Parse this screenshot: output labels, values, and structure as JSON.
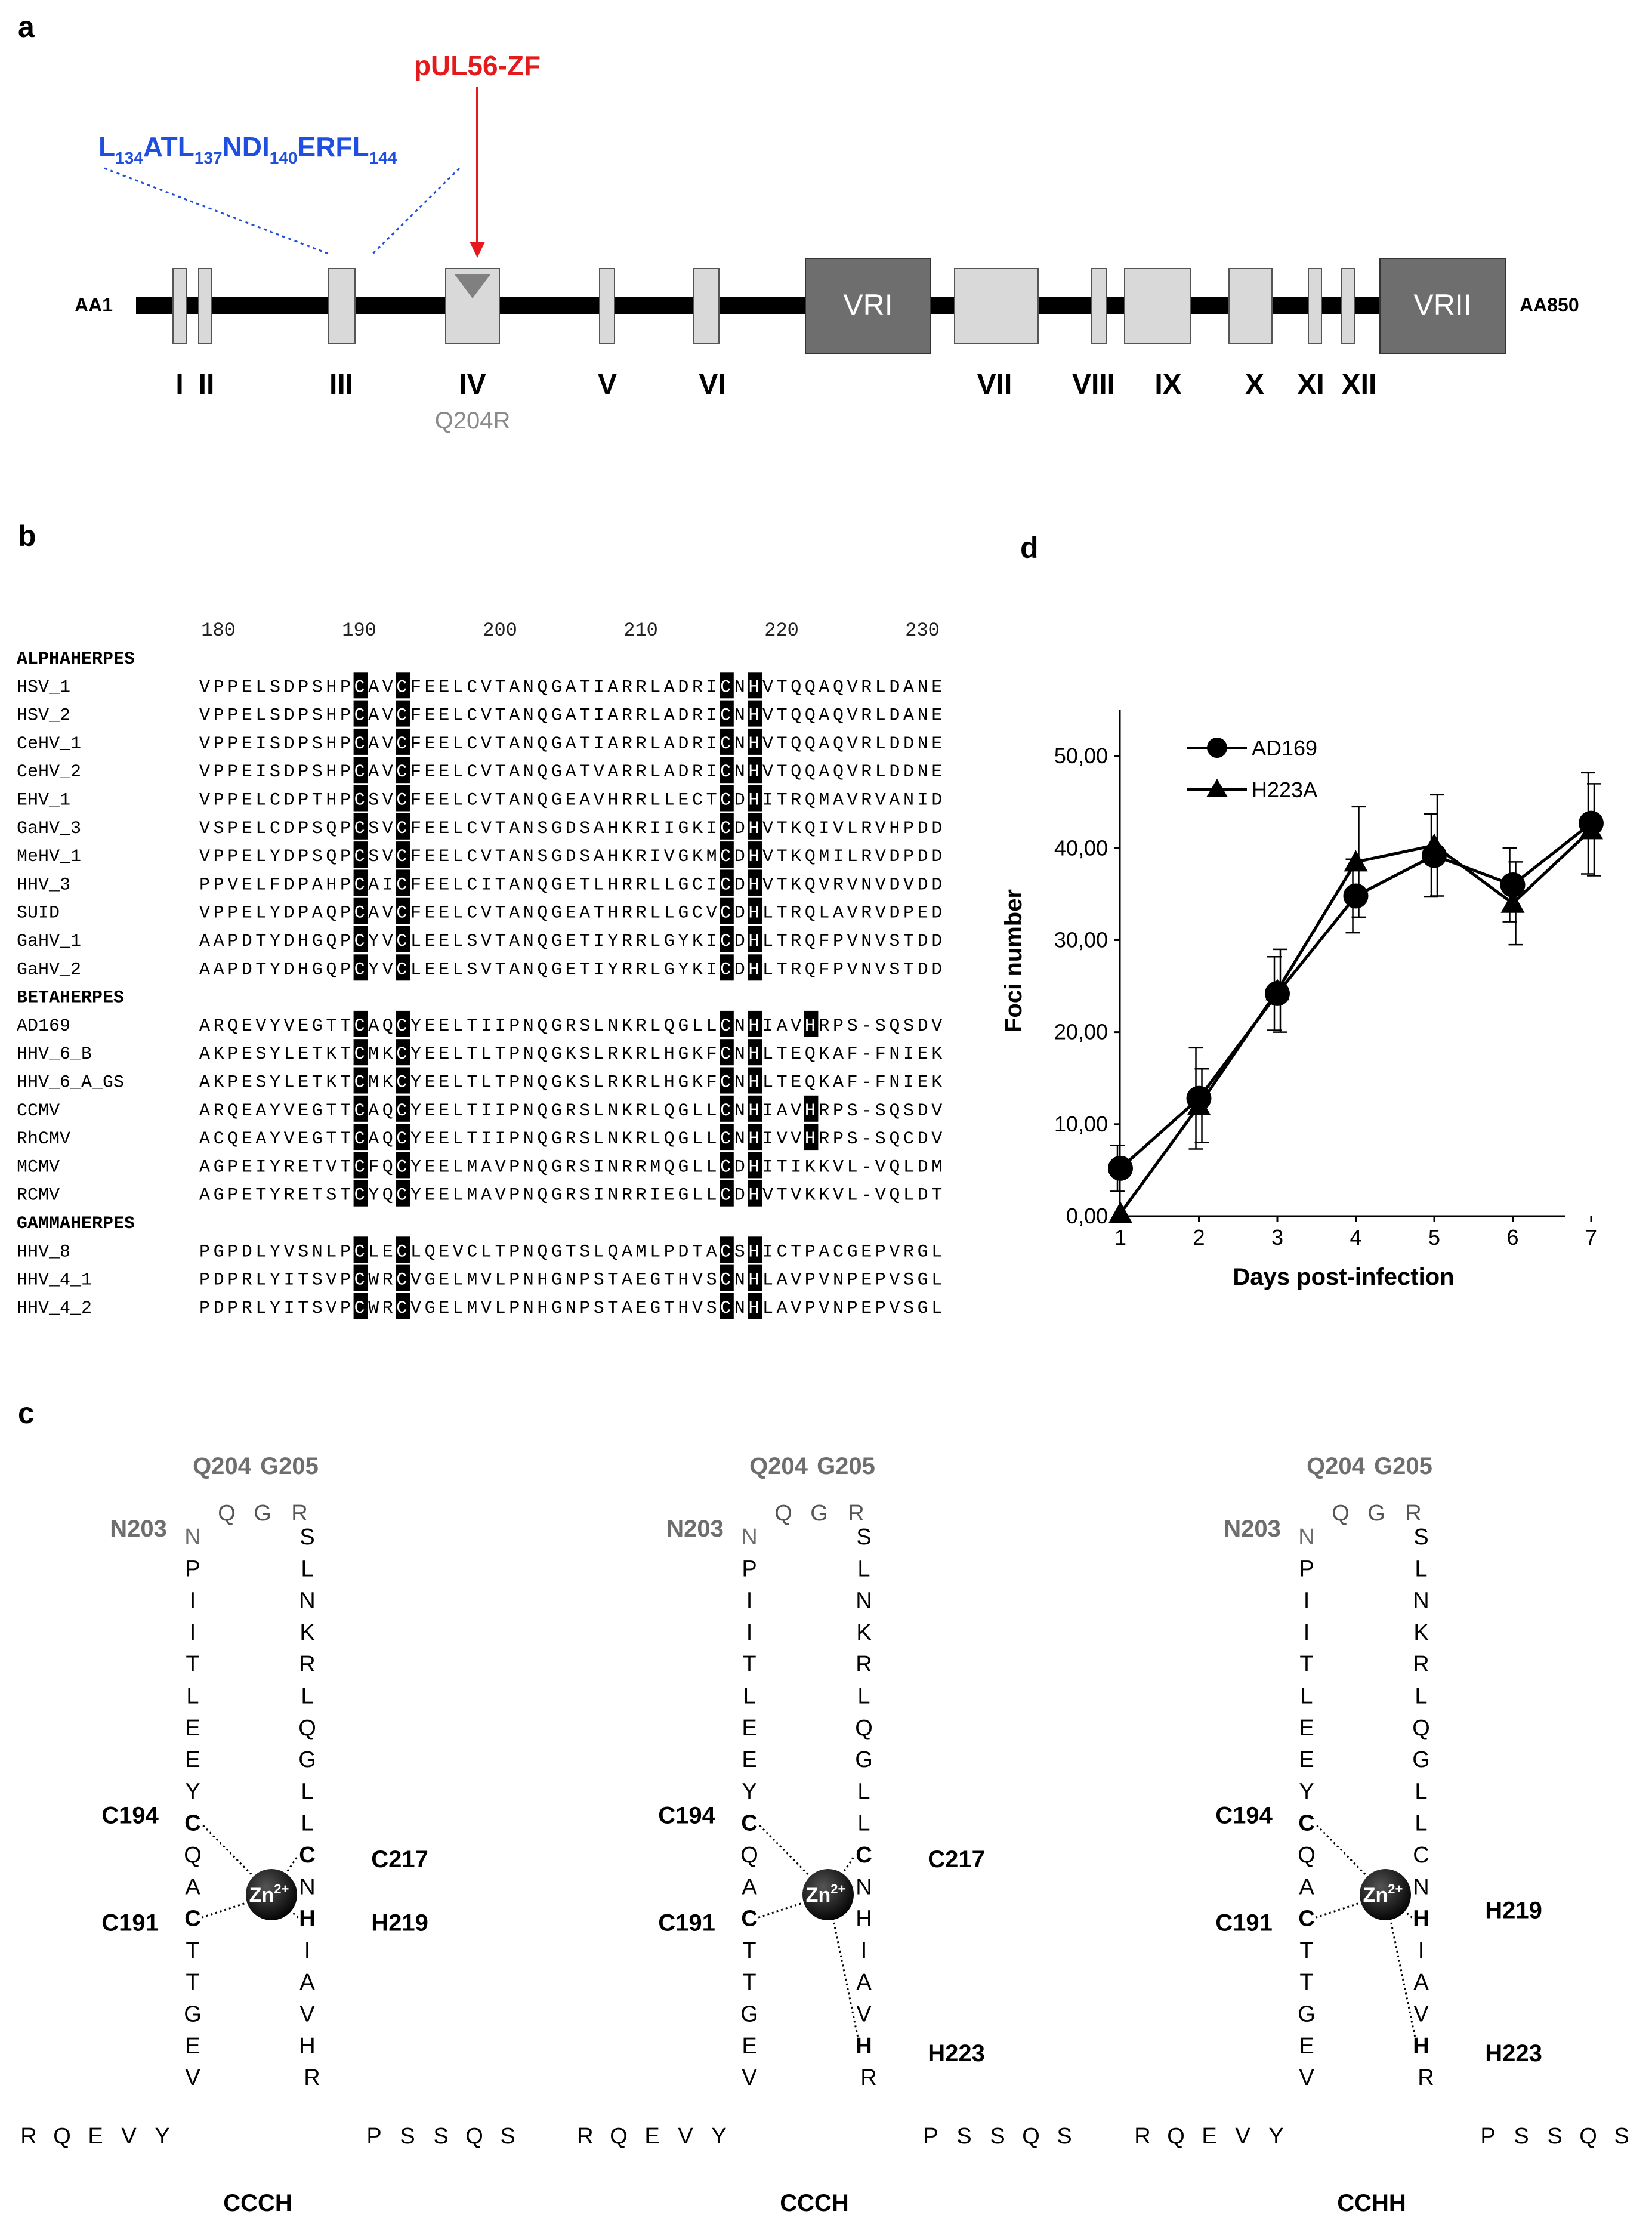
{
  "panel_labels": {
    "a": "a",
    "b": "b",
    "c": "c",
    "d": "d"
  },
  "panel_a": {
    "aa_start": "AA1",
    "aa_end": "AA850",
    "zf_label": "pUL56-ZF",
    "motif": {
      "t1": "L",
      "s1": "134",
      "t2": "ATL",
      "s2": "137",
      "t3": "NDI",
      "s3": "140",
      "t4": "ERFL",
      "s4": "144"
    },
    "regions": [
      "I",
      "II",
      "III",
      "IV",
      "V",
      "VI",
      "VII",
      "VIII",
      "IX",
      "X",
      "XI",
      "XII"
    ],
    "variable_regions": [
      "VRI",
      "VRII"
    ],
    "mutation": "Q204R"
  },
  "panel_b": {
    "numbers": [
      "180",
      "190",
      "200",
      "210",
      "220",
      "230"
    ],
    "groups": [
      {
        "title": "ALPHAHERPES",
        "rows": [
          {
            "name": "HSV_1",
            "seq": "VPPELSDPSHPCAVCFEELCVTANQGATIARRLADRICNHVTQQAQVRLDANE"
          },
          {
            "name": "HSV_2",
            "seq": "VPPELSDPSHPCAVCFEELCVTANQGATIARRLADRICNHVTQQAQVRLDANE"
          },
          {
            "name": "CeHV_1",
            "seq": "VPPEISDPSHPCAVCFEELCVTANQGATIARRLADRICNHVTQQAQVRLDDNE"
          },
          {
            "name": "CeHV_2",
            "seq": "VPPEISDPSHPCAVCFEELCVTANQGATVARRLADRICNHVTQQAQVRLDDNE"
          },
          {
            "name": "EHV_1",
            "seq": "VPPELCDPTHPCSVCFEELCVTANQGEAVHRRLLECTCDHITRQMAVRVANID"
          },
          {
            "name": "GaHV_3",
            "seq": "VSPELCDPSQPCSVCFEELCVTANSGDSAHKRIIGKICDHVTKQIVLRVHPDD"
          },
          {
            "name": "MeHV_1",
            "seq": "VPPELYDPSQPCSVCFEELCVTANSGDSAHKRIVGKMCDHVTKQMILRVDPDD"
          },
          {
            "name": "HHV_3",
            "seq": "PPVELFDPAHPCAICFEELCITANQGETLHRRLLGCICDHVTKQVRVNVDVDD"
          },
          {
            "name": "SUID",
            "seq": "VPPELYDPAQPCAVCFEELCVTANQGEATHRRLLGCVCDHLTRQLAVRVDPED"
          },
          {
            "name": "GaHV_1",
            "seq": "AAPDTYDHGQPCYVCLEELSVTANQGETIYRRLGYKICDHLTRQFPVNVSTDD"
          },
          {
            "name": "GaHV_2",
            "seq": "AAPDTYDHGQPCYVCLEELSVTANQGETIYRRLGYKICDHLTRQFPVNVSTDD"
          }
        ]
      },
      {
        "title": "BETAHERPES",
        "rows": [
          {
            "name": "AD169",
            "seq": "ARQEVYVEGTTCAQCYEELTIIPNQGRSLNKRLQGLLCNHIAVHRPS-SQSDV"
          },
          {
            "name": "HHV_6_B",
            "seq": "AKPESYLETKTCMKCYEELTLTPNQGKSLRKRLHGKFCNHLTEQKAF-FNIEK"
          },
          {
            "name": "HHV_6_A_GS",
            "seq": "AKPESYLETKTCMKCYEELTLTPNQGKSLRKRLHGKFCNHLTEQKAF-FNIEK"
          },
          {
            "name": "CCMV",
            "seq": "ARQEAYVEGTTCAQCYEELTIIPNQGRSLNKRLQGLLCNHIAVHRPS-SQSDV"
          },
          {
            "name": "RhCMV",
            "seq": "ACQEAYVEGTTCAQCYEELTIIPNQGRSLNKRLQGLLCNHIVVHRPS-SQCDV"
          },
          {
            "name": "MCMV",
            "seq": "AGPEIYRETVTCFQCYEELMAVPNQGRSINRRMQGLLCDHITIKKVL-VQLDM"
          },
          {
            "name": "RCMV",
            "seq": "AGPETYRETSTCYQCYEELMAVPNQGRSINRRIEGLLCDHVTVKKVL-VQLDT"
          }
        ]
      },
      {
        "title": "GAMMAHERPES",
        "rows": [
          {
            "name": "HHV_8",
            "seq": "PGPDLYVSNLPCLECLQEVCLTPNQGTSLQAMLPDTACSHICTPACGEPVRGL"
          },
          {
            "name": "HHV_4_1",
            "seq": "PDPRLYITSVPCWRCVGELMVLPNHGNPSTAEGTHVSCNHLAVPVNPEPVSGL"
          },
          {
            "name": "HHV_4_2",
            "seq": "PDPRLYITSVPCWRCVGELMVLPNHGNPSTAEGTHVSCNHLAVPVNPEPVSGL"
          }
        ]
      }
    ]
  },
  "panel_c": {
    "top_labels": {
      "q204": "Q204",
      "g205": "G205",
      "n203": "N203"
    },
    "top_letters": [
      "Q",
      "G",
      "R"
    ],
    "left_strand": [
      "N",
      "P",
      "I",
      "I",
      "T",
      "L",
      "E",
      "E",
      "Y",
      "C",
      "Q",
      "A",
      "C",
      "T",
      "T",
      "G",
      "E",
      "V"
    ],
    "bottom_left": [
      "R",
      "Q",
      "E",
      "V",
      "Y"
    ],
    "bottom_right": [
      "P",
      "S",
      "S",
      "Q",
      "S"
    ],
    "zn_label": "Zn",
    "zn_charge": "2+",
    "structures": [
      {
        "right_strand": [
          "S",
          "L",
          "N",
          "K",
          "R",
          "L",
          "Q",
          "G",
          "L",
          "L",
          "C",
          "N",
          "H",
          "I",
          "A",
          "V",
          "H",
          "R"
        ],
        "labels": {
          "c194": "C194",
          "c191": "C191",
          "c217": "C217",
          "h219": "H219"
        },
        "type": "CCCH"
      },
      {
        "right_strand": [
          "S",
          "L",
          "N",
          "K",
          "R",
          "L",
          "Q",
          "G",
          "L",
          "L",
          "C",
          "N",
          "H",
          "I",
          "A",
          "V",
          "H",
          "R"
        ],
        "labels": {
          "c194": "C194",
          "c191": "C191",
          "c217": "C217",
          "h223": "H223"
        },
        "type": "CCCH"
      },
      {
        "right_strand": [
          "S",
          "L",
          "N",
          "K",
          "R",
          "L",
          "Q",
          "G",
          "L",
          "L",
          "C",
          "N",
          "H",
          "I",
          "A",
          "V",
          "H",
          "R"
        ],
        "labels": {
          "c194": "C194",
          "c191": "C191",
          "h219": "H219",
          "h223": "H223"
        },
        "type": "CCHH"
      }
    ]
  },
  "chart_data": {
    "type": "line",
    "title": "",
    "xlabel": "Days post-infection",
    "ylabel": "Foci number",
    "x": [
      1,
      2,
      3,
      4,
      5,
      6,
      7
    ],
    "xticks": [
      "1",
      "2",
      "3",
      "4",
      "5",
      "6",
      "7"
    ],
    "yticks": [
      "0,00",
      "10,00",
      "20,00",
      "30,00",
      "40,00",
      "50,00"
    ],
    "ylim": [
      0,
      55
    ],
    "legend_position": "top-left",
    "series": [
      {
        "name": "AD169",
        "marker": "circle",
        "values": [
          5.2,
          12.8,
          24.2,
          34.8,
          39.2,
          36.0,
          42.7
        ],
        "errors": [
          2.5,
          5.5,
          4.0,
          4.0,
          4.5,
          4.0,
          5.5
        ]
      },
      {
        "name": "H223A",
        "marker": "triangle",
        "values": [
          0.3,
          12.0,
          24.5,
          38.5,
          40.3,
          34.0,
          42.0
        ],
        "errors": [
          0.0,
          4.0,
          4.5,
          6.0,
          5.5,
          4.5,
          5.0
        ]
      }
    ]
  }
}
